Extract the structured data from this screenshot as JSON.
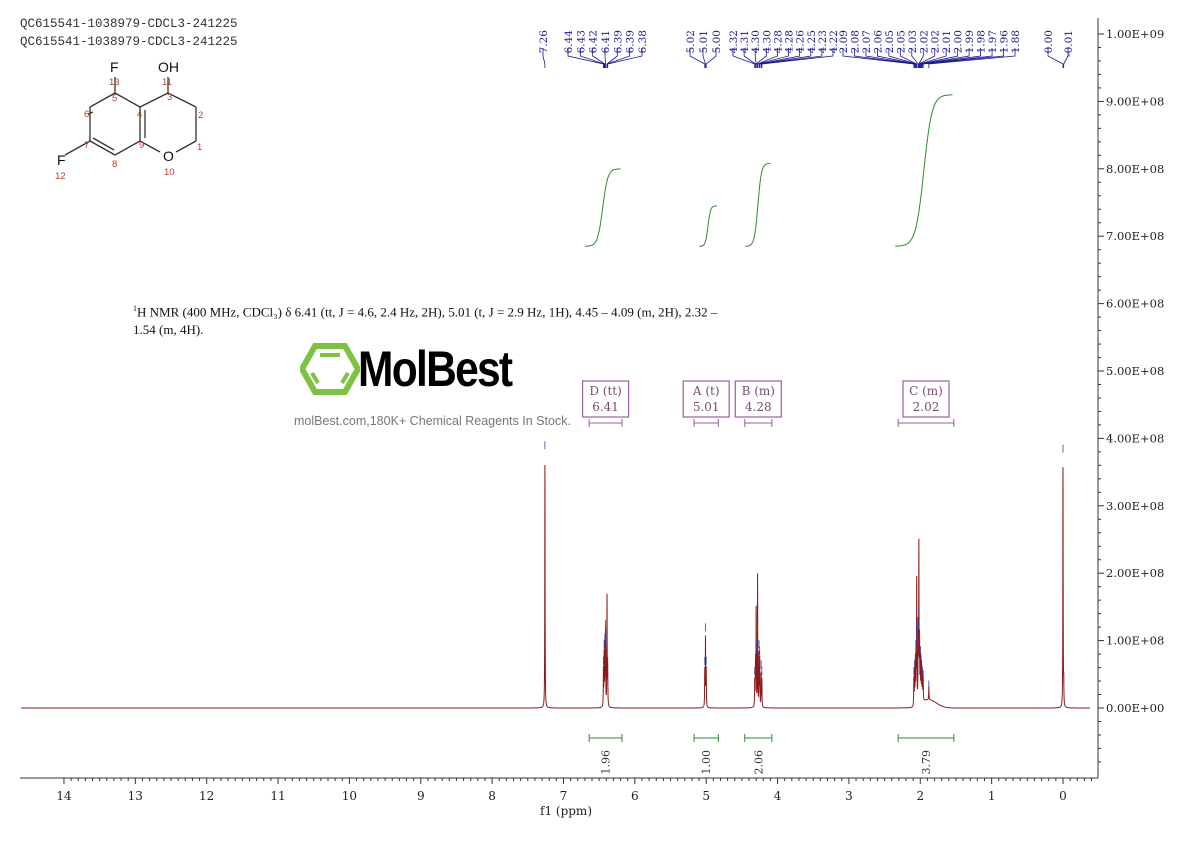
{
  "sample_ids": [
    "QC615541-1038979-CDCL3-241225",
    "QC615541-1038979-CDCL3-241225"
  ],
  "structure": {
    "atoms": {
      "F13": "F",
      "F12": "F",
      "OH": "OH",
      "O": "O"
    },
    "numbers": [
      "1",
      "2",
      "3",
      "4",
      "5",
      "6",
      "7",
      "8",
      "9",
      "10",
      "11",
      "12",
      "13"
    ]
  },
  "nmr_description": {
    "sup": "1",
    "text": "H NMR (400 MHz, CDCl₃) δ 6.41 (tt, J = 4.6, 2.4 Hz, 2H), 5.01 (t, J = 2.9 Hz, 1H), 4.45 – 4.09 (m, 2H), 2.32 – 1.54 (m, 4H)."
  },
  "watermark": {
    "brand": "MolBest",
    "tagline": "molBest.com,180K+ Chemical Reagents In Stock.",
    "color": "#7dc242"
  },
  "chart_data": {
    "type": "line",
    "xlabel": "f1 (ppm)",
    "xlim": [
      14.6,
      -0.4
    ],
    "x_ticks": [
      "14",
      "13",
      "12",
      "11",
      "10",
      "9",
      "8",
      "7",
      "6",
      "5",
      "4",
      "3",
      "2",
      "1",
      "0"
    ],
    "ylim": [
      -105000000.0,
      1030000000.0
    ],
    "y_ticks": [
      "0.00E+00",
      "1.00E+08",
      "2.00E+08",
      "3.00E+08",
      "4.00E+08",
      "5.00E+08",
      "6.00E+08",
      "7.00E+08",
      "8.00E+08",
      "9.00E+08",
      "1.00E+09"
    ],
    "colors": {
      "spectrum": "#8b1a1a",
      "peak_labels": "#1a1a8c",
      "integral": "#2e8b2e",
      "multiplet_box": "#9b5f9b"
    },
    "peak_groups": [
      {
        "labels": [
          "7.26"
        ],
        "heights": [
          375000000.0
        ]
      },
      {
        "labels": [
          "6.44",
          "6.43",
          "6.42",
          "6.41",
          "6.39",
          "6.39",
          "6.38"
        ],
        "heights": [
          55000000.0,
          80000000.0,
          90000000.0,
          110000000.0,
          90000000.0,
          80000000.0,
          55000000.0
        ]
      },
      {
        "labels": [
          "5.02",
          "5.01",
          "5.00"
        ],
        "heights": [
          55000000.0,
          105000000.0,
          55000000.0
        ]
      },
      {
        "labels": [
          "4.32",
          "4.31",
          "4.30",
          "4.30",
          "4.28",
          "4.28",
          "4.26",
          "4.25",
          "4.23",
          "4.22"
        ],
        "heights": [
          40000000.0,
          60000000.0,
          80000000.0,
          70000000.0,
          105000000.0,
          90000000.0,
          80000000.0,
          70000000.0,
          50000000.0,
          40000000.0
        ]
      },
      {
        "labels": [
          "2.09",
          "2.08",
          "2.07",
          "2.06",
          "2.05",
          "2.05",
          "2.03",
          "2.02",
          "2.02",
          "2.01",
          "2.00",
          "1.99",
          "1.98",
          "1.97",
          "1.96",
          "1.88"
        ],
        "heights": [
          40000000.0,
          50000000.0,
          60000000.0,
          80000000.0,
          90000000.0,
          100000000.0,
          110000000.0,
          130000000.0,
          110000000.0,
          90000000.0,
          70000000.0,
          60000000.0,
          50000000.0,
          40000000.0,
          35000000.0,
          20000000.0
        ]
      },
      {
        "labels": [
          "0.00",
          "-0.01"
        ],
        "heights": [
          370000000.0,
          30000000.0
        ]
      }
    ],
    "multiplets": [
      {
        "label": "D (tt)",
        "shift": "6.41",
        "range": [
          6.64,
          6.18
        ],
        "integral": "1.96"
      },
      {
        "label": "A (t)",
        "shift": "5.01",
        "range": [
          5.17,
          4.83
        ],
        "integral": "1.00"
      },
      {
        "label": "B (m)",
        "shift": "4.28",
        "range": [
          4.46,
          4.08
        ],
        "integral": "2.06"
      },
      {
        "label": "C (m)",
        "shift": "2.02",
        "range": [
          2.31,
          1.53
        ],
        "integral": "3.79"
      }
    ],
    "integral_curves": [
      {
        "range": [
          6.7,
          6.2
        ],
        "from": 685000000.0,
        "to": 800000000.0
      },
      {
        "range": [
          5.1,
          4.85
        ],
        "from": 685000000.0,
        "to": 745000000.0
      },
      {
        "range": [
          4.45,
          4.1
        ],
        "from": 685000000.0,
        "to": 808000000.0
      },
      {
        "range": [
          2.35,
          1.55
        ],
        "from": 685000000.0,
        "to": 910000000.0
      }
    ]
  }
}
